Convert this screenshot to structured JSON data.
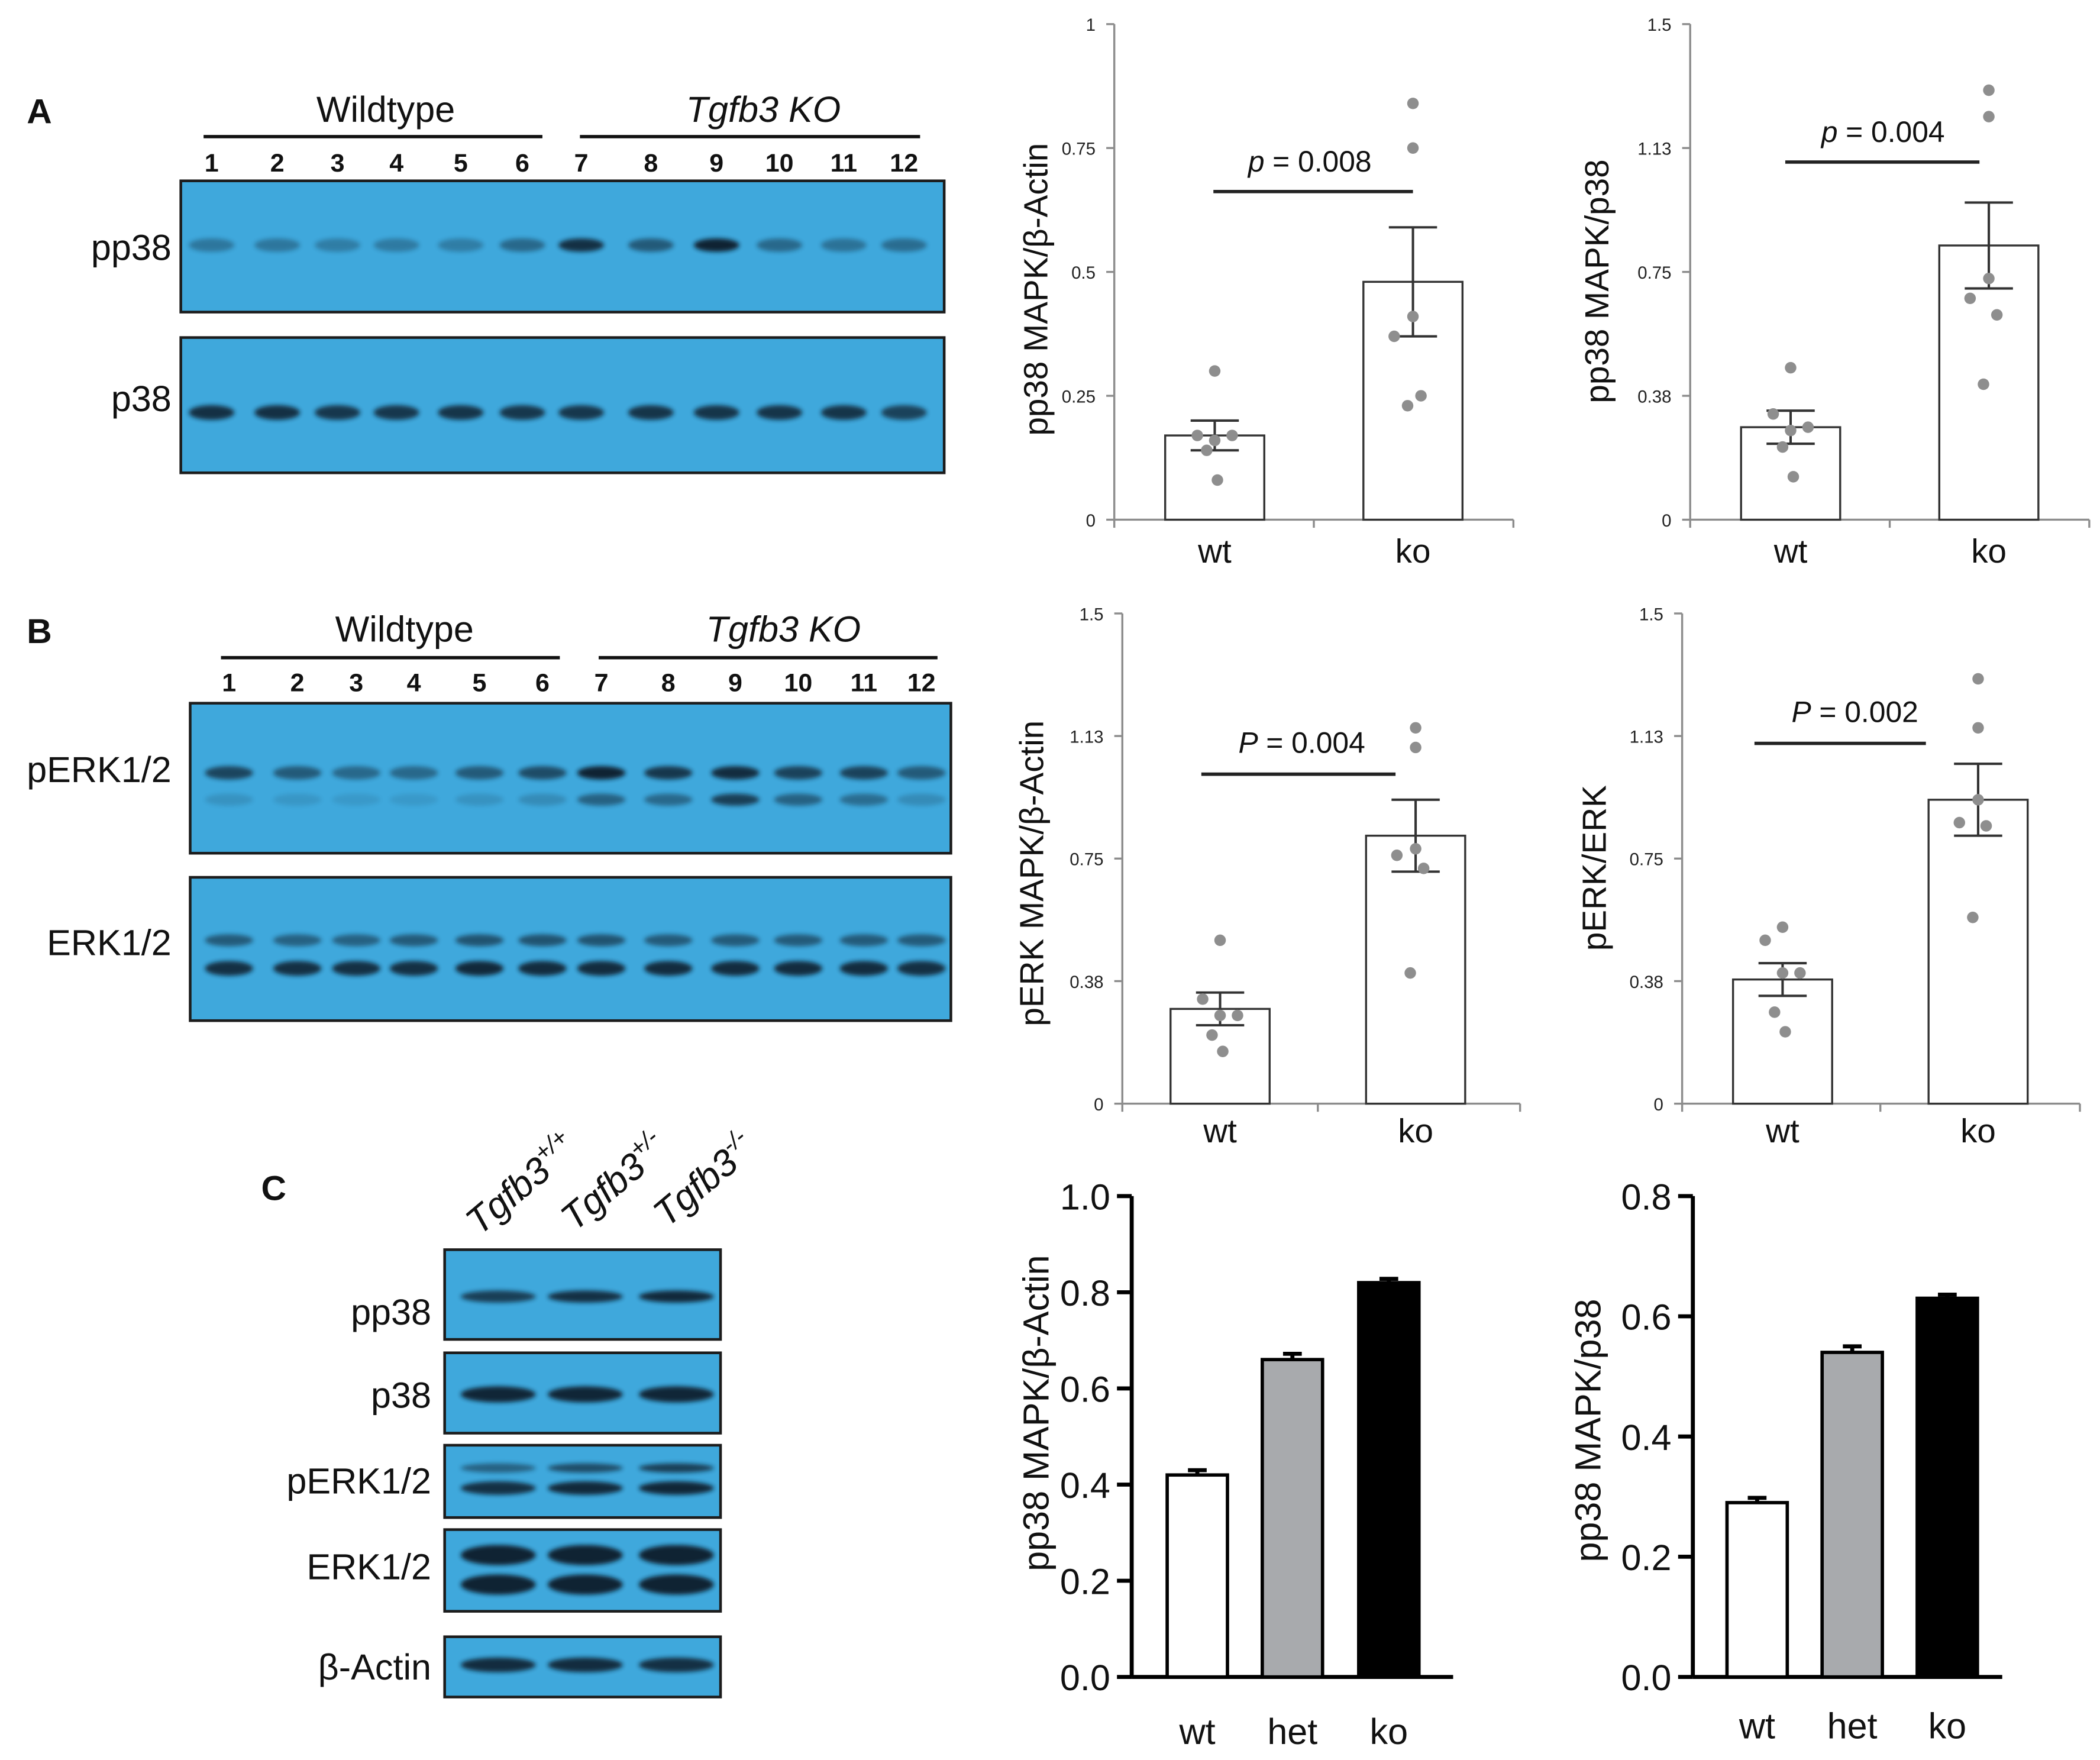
{
  "figure": {
    "panel_A": {
      "letter": "A",
      "groups": [
        "Wildtype",
        "Tgfb3 KO"
      ],
      "lanes": [
        "1",
        "2",
        "3",
        "4",
        "5",
        "6",
        "7",
        "8",
        "9",
        "10",
        "11",
        "12"
      ],
      "blots": [
        {
          "label": "pp38",
          "intensity": [
            0.35,
            0.35,
            0.3,
            0.32,
            0.3,
            0.45,
            0.85,
            0.55,
            0.95,
            0.45,
            0.38,
            0.42
          ]
        },
        {
          "label": "p38",
          "intensity": [
            0.85,
            0.85,
            0.8,
            0.8,
            0.82,
            0.8,
            0.8,
            0.82,
            0.82,
            0.82,
            0.82,
            0.72
          ]
        }
      ]
    },
    "panel_B": {
      "letter": "B",
      "groups": [
        "Wildtype",
        "Tgfb3 KO"
      ],
      "lanes": [
        "1",
        "2",
        "3",
        "4",
        "5",
        "6",
        "7",
        "8",
        "9",
        "10",
        "11",
        "12"
      ],
      "blots": [
        {
          "label": "pERK1/2",
          "intensity": [
            0.7,
            0.55,
            0.45,
            0.45,
            0.55,
            0.65,
            0.95,
            0.8,
            0.88,
            0.72,
            0.72,
            0.55
          ],
          "intensity_lower": [
            0.15,
            0.12,
            0.1,
            0.1,
            0.15,
            0.2,
            0.5,
            0.45,
            0.75,
            0.5,
            0.42,
            0.2
          ]
        },
        {
          "label": "ERK1/2",
          "intensity": [
            0.55,
            0.5,
            0.5,
            0.55,
            0.6,
            0.6,
            0.6,
            0.55,
            0.55,
            0.55,
            0.55,
            0.55
          ],
          "intensity_lower": [
            0.85,
            0.85,
            0.85,
            0.85,
            0.9,
            0.88,
            0.88,
            0.88,
            0.88,
            0.88,
            0.88,
            0.85
          ]
        }
      ]
    },
    "panel_C": {
      "letter": "C",
      "columns": [
        {
          "gene": "Tgfb3",
          "genotype": "+/+"
        },
        {
          "gene": "Tgfb3",
          "genotype": "+/-"
        },
        {
          "gene": "Tgfb3",
          "genotype": "-/-"
        }
      ],
      "blots": [
        {
          "label": "pp38",
          "intensity": [
            0.75,
            0.85,
            0.9
          ]
        },
        {
          "label": "p38",
          "intensity": [
            0.92,
            0.92,
            0.92
          ]
        },
        {
          "label": "pERK1/2",
          "intensity": [
            0.5,
            0.65,
            0.75
          ],
          "intensity_lower": [
            0.85,
            0.9,
            0.92
          ]
        },
        {
          "label": "ERK1/2",
          "intensity": [
            0.95,
            0.95,
            0.95
          ],
          "intensity_lower": [
            0.95,
            0.95,
            0.95
          ]
        },
        {
          "label": "β-Actin",
          "intensity": [
            0.88,
            0.88,
            0.85
          ]
        }
      ]
    }
  },
  "colors": {
    "blot_background": "#3fa8dc",
    "blot_border": "#1c1c1c",
    "band": "#0b1a2b",
    "axis": "#8c8c8c",
    "point": "#8e8e8e"
  },
  "chart_data": [
    {
      "type": "bar",
      "categories": [
        "wt",
        "ko"
      ],
      "values": [
        0.17,
        0.48
      ],
      "errors": [
        0.03,
        0.11
      ],
      "points": [
        [
          0.3,
          0.17,
          0.17,
          0.16,
          0.14,
          0.08
        ],
        [
          0.84,
          0.75,
          0.41,
          0.37,
          0.25,
          0.23
        ]
      ],
      "ylabel": "pp38 MAPK/β-Actin",
      "ylim": [
        0,
        1
      ],
      "yticks": [
        0,
        0.25,
        0.5,
        0.75,
        1
      ],
      "ytick_labels": [
        "0",
        "0.25",
        "0.5",
        "0.75",
        "1"
      ],
      "significance": {
        "symbol": "p",
        "text": "= 0.008"
      },
      "bar_colors": [
        "#ffffff",
        "#ffffff"
      ],
      "grid": false
    },
    {
      "type": "bar",
      "categories": [
        "wt",
        "ko"
      ],
      "values": [
        0.28,
        0.83
      ],
      "errors": [
        0.05,
        0.13
      ],
      "points": [
        [
          0.46,
          0.32,
          0.28,
          0.27,
          0.22,
          0.13
        ],
        [
          1.3,
          1.22,
          0.73,
          0.67,
          0.62,
          0.41
        ]
      ],
      "ylabel": "pp38 MAPK/p38",
      "ylim": [
        0,
        1.5
      ],
      "yticks": [
        0,
        0.375,
        0.75,
        1.125,
        1.5
      ],
      "ytick_labels": [
        "0",
        "0.38",
        "0.75",
        "1.13",
        "1.5"
      ],
      "significance": {
        "symbol": "p",
        "text": "= 0.004"
      },
      "bar_colors": [
        "#ffffff",
        "#ffffff"
      ],
      "grid": false
    },
    {
      "type": "bar",
      "categories": [
        "wt",
        "ko"
      ],
      "values": [
        0.29,
        0.82
      ],
      "errors": [
        0.05,
        0.11
      ],
      "points": [
        [
          0.5,
          0.32,
          0.27,
          0.27,
          0.21,
          0.16
        ],
        [
          1.15,
          1.09,
          0.78,
          0.76,
          0.72,
          0.4
        ]
      ],
      "ylabel": "pERK MAPK/β-Actin",
      "ylim": [
        0,
        1.5
      ],
      "yticks": [
        0,
        0.375,
        0.75,
        1.125,
        1.5
      ],
      "ytick_labels": [
        "0",
        "0.38",
        "0.75",
        "1.13",
        "1.5"
      ],
      "significance": {
        "symbol": "P",
        "text": "= 0.004"
      },
      "bar_colors": [
        "#ffffff",
        "#ffffff"
      ],
      "grid": false
    },
    {
      "type": "bar",
      "categories": [
        "wt",
        "ko"
      ],
      "values": [
        0.38,
        0.93
      ],
      "errors": [
        0.05,
        0.11
      ],
      "points": [
        [
          0.54,
          0.5,
          0.4,
          0.4,
          0.28,
          0.22
        ],
        [
          1.3,
          1.15,
          0.93,
          0.86,
          0.85,
          0.57
        ]
      ],
      "ylabel": "pERK/ERK",
      "ylim": [
        0,
        1.5
      ],
      "yticks": [
        0,
        0.375,
        0.75,
        1.125,
        1.5
      ],
      "ytick_labels": [
        "0",
        "0.38",
        "0.75",
        "1.13",
        "1.5"
      ],
      "significance": {
        "symbol": "P",
        "text": "= 0.002"
      },
      "bar_colors": [
        "#ffffff",
        "#ffffff"
      ],
      "grid": false
    },
    {
      "type": "bar",
      "categories": [
        "wt",
        "het",
        "ko"
      ],
      "values": [
        0.42,
        0.66,
        0.82
      ],
      "errors": [
        0.01,
        0.012,
        0.008
      ],
      "ylabel": "pp38 MAPK/β-Actin",
      "ylim": [
        0,
        1.0
      ],
      "yticks": [
        0,
        0.2,
        0.4,
        0.6,
        0.8,
        1.0
      ],
      "ytick_labels": [
        "0.0",
        "0.2",
        "0.4",
        "0.6",
        "0.8",
        "1.0"
      ],
      "bar_colors": [
        "#ffffff",
        "#a8aaad",
        "#000000"
      ],
      "grid": false
    },
    {
      "type": "bar",
      "categories": [
        "wt",
        "het",
        "ko"
      ],
      "values": [
        0.29,
        0.54,
        0.63
      ],
      "errors": [
        0.008,
        0.01,
        0.006
      ],
      "ylabel": "pp38 MAPK/p38",
      "ylim": [
        0,
        0.8
      ],
      "yticks": [
        0,
        0.2,
        0.4,
        0.6,
        0.8
      ],
      "ytick_labels": [
        "0.0",
        "0.2",
        "0.4",
        "0.6",
        "0.8"
      ],
      "bar_colors": [
        "#ffffff",
        "#a8aaad",
        "#000000"
      ],
      "grid": false
    }
  ]
}
